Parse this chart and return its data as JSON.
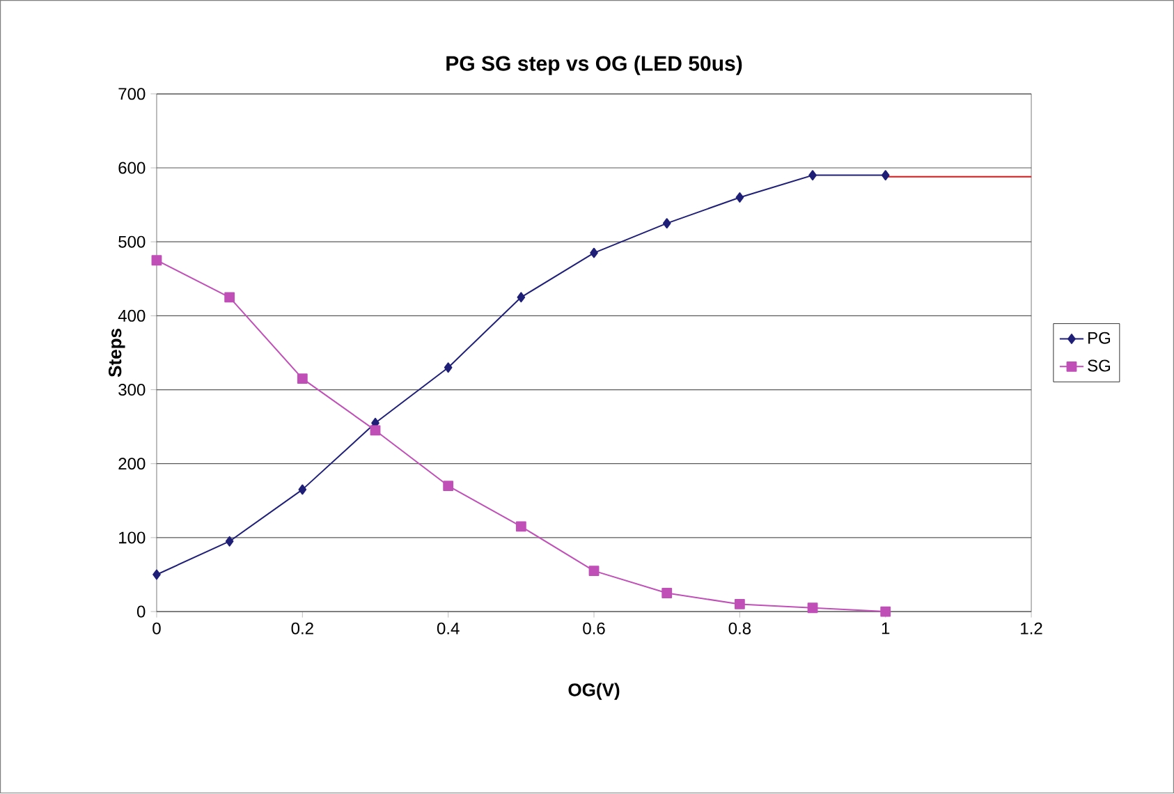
{
  "chart_data": {
    "type": "line",
    "title": "PG SG step vs OG (LED 50us)",
    "xlabel": "OG(V)",
    "ylabel": "Steps",
    "x": [
      0,
      0.1,
      0.2,
      0.3,
      0.4,
      0.5,
      0.6,
      0.7,
      0.8,
      0.9,
      1
    ],
    "series": [
      {
        "name": "PG",
        "color": "#1f1f78",
        "marker": "diamond",
        "values": [
          50,
          95,
          165,
          255,
          330,
          425,
          485,
          525,
          560,
          590,
          590
        ]
      },
      {
        "name": "SG",
        "color": "#c04fb8",
        "marker": "square",
        "values": [
          475,
          425,
          315,
          245,
          170,
          115,
          55,
          25,
          10,
          5,
          0
        ]
      },
      {
        "color": "#ee1111",
        "marker": "none",
        "x": [
          1,
          1.2
        ],
        "values": [
          588,
          588
        ]
      }
    ],
    "xlim": [
      0,
      1.2
    ],
    "ylim": [
      0,
      700
    ],
    "xticks": [
      0,
      0.2,
      0.4,
      0.6,
      0.8,
      1,
      1.2
    ],
    "yticks": [
      0,
      100,
      200,
      300,
      400,
      500,
      600,
      700
    ],
    "grid": "y",
    "legend": "right",
    "line_style": "solid"
  }
}
